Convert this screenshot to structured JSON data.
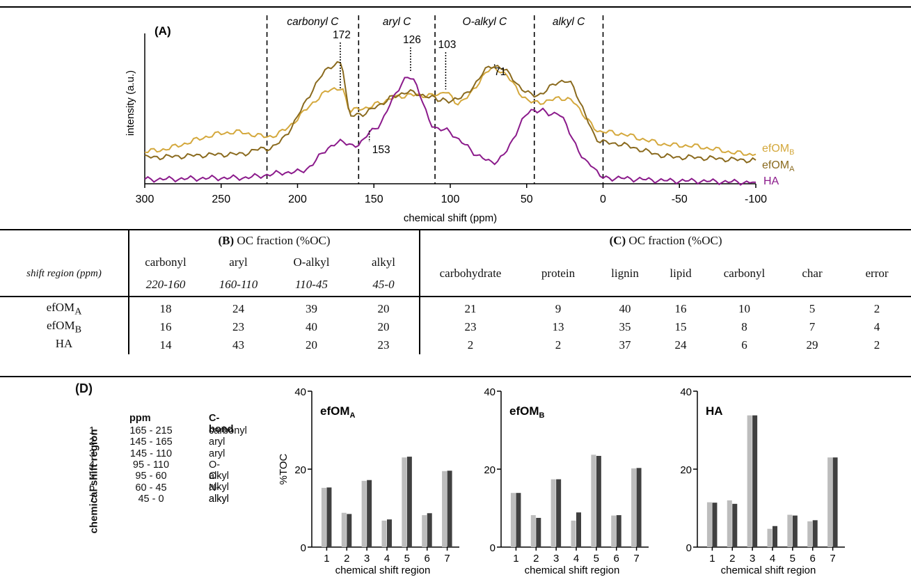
{
  "panelA": {
    "label": "(A)",
    "ylabel": "intensity (a.u.)",
    "xlabel": "chemical shift (ppm)",
    "xticks": [
      "300",
      "250",
      "200",
      "150",
      "100",
      "50",
      "0",
      "-50",
      "-100"
    ],
    "regions": [
      "carbonyl C",
      "aryl C",
      "O-alkyl C",
      "alkyl C"
    ],
    "peak_labels": [
      "172",
      "126",
      "103",
      "71",
      "153"
    ],
    "legend": {
      "efomb": {
        "base": "efOM",
        "sub": "B"
      },
      "efoma": {
        "base": "efOM",
        "sub": "A"
      },
      "ha": "HA"
    },
    "colors": {
      "efomb": "#d4a83c",
      "efoma": "#8a6a1e",
      "ha": "#8b1a8b"
    }
  },
  "chart_data": [
    {
      "type": "line",
      "x_unit": "ppm",
      "xlim": [
        300,
        -100
      ],
      "region_boundaries": [
        220,
        160,
        110,
        45,
        0
      ],
      "series": [
        {
          "name": "efOMB",
          "x": [
            300,
            240,
            220,
            172,
            165,
            126,
            110,
            103,
            95,
            71,
            45,
            25,
            0,
            -50,
            -100
          ],
          "values": [
            0.22,
            0.35,
            0.32,
            0.65,
            0.5,
            0.6,
            0.6,
            0.62,
            0.55,
            0.78,
            0.55,
            0.58,
            0.35,
            0.26,
            0.2
          ]
        },
        {
          "name": "efOMA",
          "x": [
            300,
            240,
            220,
            172,
            165,
            126,
            110,
            103,
            95,
            71,
            45,
            25,
            0,
            -50,
            -100
          ],
          "values": [
            0.18,
            0.2,
            0.24,
            0.82,
            0.46,
            0.62,
            0.58,
            0.56,
            0.58,
            0.8,
            0.6,
            0.7,
            0.28,
            0.18,
            0.16
          ]
        },
        {
          "name": "HA",
          "x": [
            300,
            240,
            200,
            172,
            160,
            153,
            126,
            110,
            71,
            45,
            30,
            10,
            0,
            -50,
            -100
          ],
          "values": [
            0.03,
            0.04,
            0.08,
            0.28,
            0.26,
            0.35,
            0.72,
            0.38,
            0.15,
            0.5,
            0.47,
            0.15,
            0.04,
            0.02,
            0.01
          ]
        }
      ]
    },
    {
      "type": "bar",
      "title": {
        "base": "efOM",
        "sub": "A"
      },
      "categories": [
        "1",
        "2",
        "3",
        "4",
        "5",
        "6",
        "7"
      ],
      "xlabel": "chemical shift region",
      "ylabel": "%TOC",
      "ylim": [
        0,
        40
      ],
      "yticks": [
        "0",
        "20",
        "40"
      ],
      "series": [
        {
          "values": [
            15.2,
            8.8,
            17.0,
            6.8,
            23.0,
            8.2,
            19.5
          ]
        },
        {
          "values": [
            15.3,
            8.5,
            17.2,
            7.1,
            23.2,
            8.7,
            19.6
          ]
        }
      ]
    },
    {
      "type": "bar",
      "title": {
        "base": "efOM",
        "sub": "B"
      },
      "categories": [
        "1",
        "2",
        "3",
        "4",
        "5",
        "6",
        "7"
      ],
      "xlabel": "chemical shift region",
      "ylabel": "",
      "ylim": [
        0,
        40
      ],
      "yticks": [
        "0",
        "20",
        "40"
      ],
      "series": [
        {
          "values": [
            13.9,
            8.2,
            17.4,
            6.8,
            23.7,
            8.1,
            20.2
          ]
        },
        {
          "values": [
            13.9,
            7.5,
            17.4,
            8.9,
            23.4,
            8.2,
            20.3
          ]
        }
      ]
    },
    {
      "type": "bar",
      "title": {
        "base": "HA",
        "sub": ""
      },
      "categories": [
        "1",
        "2",
        "3",
        "4",
        "5",
        "6",
        "7"
      ],
      "xlabel": "chemical shift region",
      "ylabel": "",
      "ylim": [
        0,
        40
      ],
      "yticks": [
        "0",
        "20",
        "40"
      ],
      "series": [
        {
          "values": [
            11.5,
            12.0,
            33.8,
            4.7,
            8.3,
            6.6,
            23.0
          ]
        },
        {
          "values": [
            11.4,
            11.1,
            33.8,
            5.4,
            8.1,
            6.9,
            23.0
          ]
        }
      ]
    }
  ],
  "tableB": {
    "title_bold": "(B)",
    "title_rest": " OC fraction (%OC)",
    "shift_label": "shift region (ppm)",
    "columns": [
      {
        "name": "carbonyl",
        "range": "220-160"
      },
      {
        "name": "aryl",
        "range": "160-110"
      },
      {
        "name": "O-alkyl",
        "range": "110-45"
      },
      {
        "name": "alkyl",
        "range": "45-0"
      }
    ]
  },
  "tableC": {
    "title_bold": "(C)",
    "title_rest": " OC fraction (%OC)",
    "columns": [
      "carbohydrate",
      "protein",
      "lignin",
      "lipid",
      "carbonyl",
      "char",
      "error"
    ]
  },
  "rows": [
    {
      "base": "efOM",
      "sub": "A",
      "b": [
        "18",
        "24",
        "39",
        "20"
      ],
      "c": [
        "21",
        "9",
        "40",
        "16",
        "10",
        "5",
        "2"
      ]
    },
    {
      "base": "efOM",
      "sub": "B",
      "b": [
        "16",
        "23",
        "40",
        "20"
      ],
      "c": [
        "23",
        "13",
        "35",
        "15",
        "8",
        "7",
        "4"
      ]
    },
    {
      "base": "HA",
      "sub": "",
      "b": [
        "14",
        "43",
        "20",
        "23"
      ],
      "c": [
        "2",
        "2",
        "37",
        "24",
        "6",
        "29",
        "2"
      ]
    }
  ],
  "panelD": {
    "label": "(D)",
    "vlabel": "chemical shift region",
    "head_ppm": "ppm",
    "head_bond": "C-bond",
    "entries": [
      {
        "n": "1",
        "ppm": "165 - 215",
        "bond": "carbonyl"
      },
      {
        "n": "2",
        "ppm": "145 - 165",
        "bond": "aryl"
      },
      {
        "n": "3",
        "ppm": "145 - 110",
        "bond": "aryl"
      },
      {
        "n": "4",
        "ppm": "95 - 110",
        "bond": "O-alkyl"
      },
      {
        "n": "5",
        "ppm": "95 - 60",
        "bond": "O-alkyl"
      },
      {
        "n": "6",
        "ppm": "60 - 45",
        "bond": "N-alkyl"
      },
      {
        "n": "7",
        "ppm": "45 - 0",
        "bond": "alkyl"
      }
    ],
    "bar_colors": [
      "#bdbdbd",
      "#404040"
    ]
  }
}
